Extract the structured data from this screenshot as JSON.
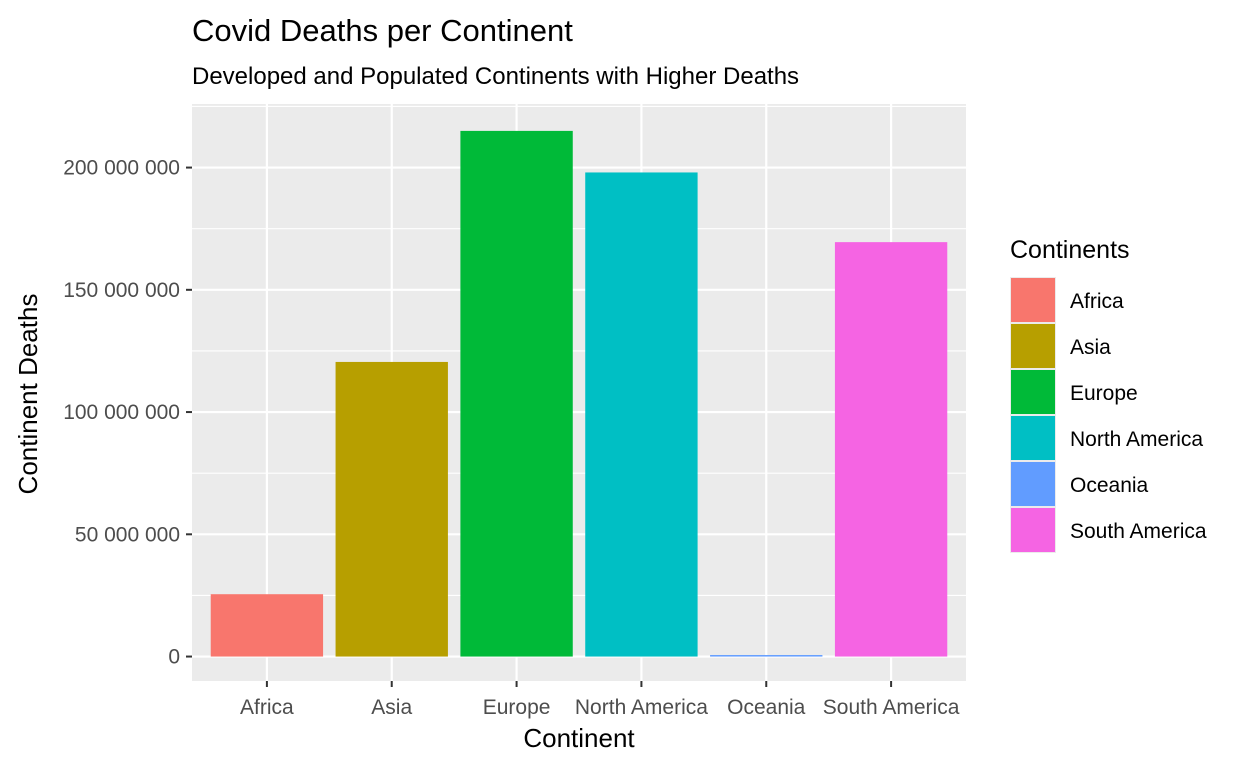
{
  "chart_data": {
    "type": "bar",
    "title": "Covid Deaths per Continent",
    "subtitle": "Developed and Populated Continents with Higher Deaths",
    "xlabel": "Continent",
    "ylabel": "Continent Deaths",
    "categories": [
      "Africa",
      "Asia",
      "Europe",
      "North America",
      "Oceania",
      "South America"
    ],
    "values": [
      25500000,
      120500000,
      215000000,
      198000000,
      500000,
      169500000
    ],
    "colors": [
      "#F8766D",
      "#B79F00",
      "#00BA38",
      "#00BFC4",
      "#619CFF",
      "#F564E3"
    ],
    "ylim": [
      -10000000,
      226000000
    ],
    "yticks": [
      0,
      50000000,
      100000000,
      150000000,
      200000000
    ],
    "ytick_labels": [
      "0",
      "50 000 000",
      "100 000 000",
      "150 000 000",
      "200 000 000"
    ],
    "grid": true,
    "panel_background": "#EBEBEB",
    "grid_color": "#FFFFFF",
    "legend": {
      "title": "Continents",
      "placement": "right",
      "entries": [
        "Africa",
        "Asia",
        "Europe",
        "North America",
        "Oceania",
        "South America"
      ]
    }
  }
}
